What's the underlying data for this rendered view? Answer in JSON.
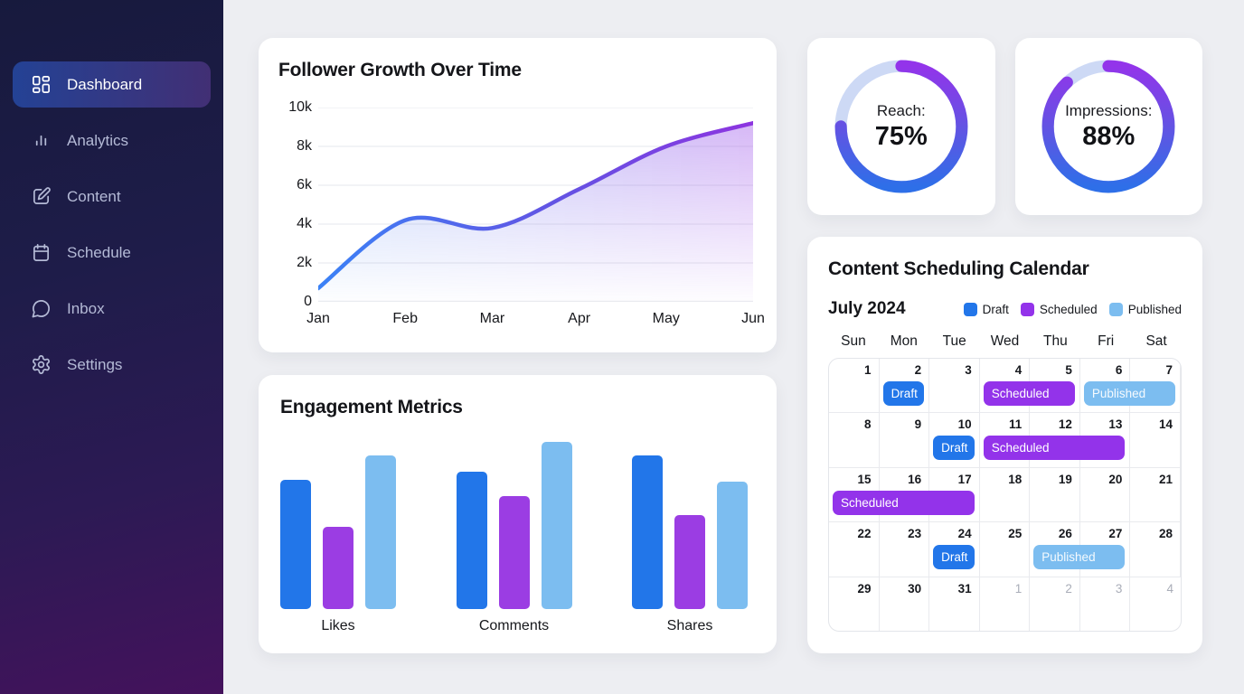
{
  "sidebar": {
    "items": [
      {
        "label": "Dashboard",
        "icon": "dashboard",
        "active": true
      },
      {
        "label": "Analytics",
        "icon": "analytics",
        "active": false
      },
      {
        "label": "Content",
        "icon": "content",
        "active": false
      },
      {
        "label": "Schedule",
        "icon": "schedule",
        "active": false
      },
      {
        "label": "Inbox",
        "icon": "inbox",
        "active": false
      },
      {
        "label": "Settings",
        "icon": "settings",
        "active": false
      }
    ]
  },
  "follower": {
    "title": "Follower Growth Over Time",
    "chart_data": {
      "type": "area",
      "x": [
        "Jan",
        "Feb",
        "Mar",
        "Apr",
        "May",
        "Jun"
      ],
      "values": [
        700,
        4200,
        3800,
        5800,
        8000,
        9200
      ],
      "ylim": [
        0,
        10000
      ],
      "y_tick_labels": [
        "10k",
        "8k",
        "6k",
        "4k",
        "2k",
        "0"
      ],
      "grid": "horizontal",
      "line_gradient": [
        "#3b82f6",
        "#6353e3",
        "#8d34e0"
      ],
      "fill_gradient": [
        "rgba(96,150,241,0.42)",
        "rgba(164,94,235,0.48)"
      ]
    }
  },
  "engagement": {
    "title": "Engagement Metrics",
    "chart_data": {
      "type": "bar",
      "categories": [
        "Likes",
        "Comments",
        "Shares"
      ],
      "series": [
        {
          "name": "blue",
          "color": "#2276e9",
          "values": [
            74,
            79,
            88
          ]
        },
        {
          "name": "purple",
          "color": "#9b3de3",
          "values": [
            47,
            65,
            54
          ]
        },
        {
          "name": "light-blue",
          "color": "#7cbdf0",
          "values": [
            88,
            96,
            73
          ]
        }
      ],
      "unit": "percent-of-chart-height"
    }
  },
  "gauges": [
    {
      "label": "Reach:",
      "value": "75%",
      "percent": 75
    },
    {
      "label": "Impressions:",
      "value": "88%",
      "percent": 88
    }
  ],
  "gauge_colors": {
    "track": "#cdd9f5",
    "gradient": [
      "#2e6fe8",
      "#6353e3",
      "#9334ea"
    ]
  },
  "calendar": {
    "title": "Content Scheduling Calendar",
    "month_label": "July 2024",
    "legend": [
      {
        "label": "Draft",
        "color": "#2276e9"
      },
      {
        "label": "Scheduled",
        "color": "#9333ea"
      },
      {
        "label": "Published",
        "color": "#7cbdf0"
      }
    ],
    "weekdays": [
      "Sun",
      "Mon",
      "Tue",
      "Wed",
      "Thu",
      "Fri",
      "Sat"
    ],
    "event_colors": {
      "draft": "#2276e9",
      "scheduled": "#9333ea",
      "published": "#7cbdf0"
    },
    "weeks": [
      {
        "days": [
          {
            "n": "1"
          },
          {
            "n": "2"
          },
          {
            "n": "3"
          },
          {
            "n": "4"
          },
          {
            "n": "5"
          },
          {
            "n": "6"
          },
          {
            "n": "7"
          }
        ],
        "events": [
          {
            "col": 2,
            "span": 1,
            "type": "draft",
            "label": "Draft"
          },
          {
            "col": 4,
            "span": 2,
            "type": "scheduled",
            "label": "Scheduled"
          },
          {
            "col": 6,
            "span": 2,
            "type": "published",
            "label": "Published"
          }
        ]
      },
      {
        "days": [
          {
            "n": "8"
          },
          {
            "n": "9"
          },
          {
            "n": "10"
          },
          {
            "n": "11"
          },
          {
            "n": "12"
          },
          {
            "n": "13"
          },
          {
            "n": "14"
          }
        ],
        "events": [
          {
            "col": 3,
            "span": 1,
            "type": "draft",
            "label": "Draft"
          },
          {
            "col": 4,
            "span": 3,
            "type": "scheduled",
            "label": "Scheduled"
          }
        ]
      },
      {
        "days": [
          {
            "n": "15"
          },
          {
            "n": "16"
          },
          {
            "n": "17"
          },
          {
            "n": "18"
          },
          {
            "n": "19"
          },
          {
            "n": "20"
          },
          {
            "n": "21"
          }
        ],
        "events": [
          {
            "col": 1,
            "span": 3,
            "type": "scheduled",
            "label": "Scheduled"
          }
        ]
      },
      {
        "days": [
          {
            "n": "22"
          },
          {
            "n": "23"
          },
          {
            "n": "24"
          },
          {
            "n": "25"
          },
          {
            "n": "26"
          },
          {
            "n": "27"
          },
          {
            "n": "28"
          }
        ],
        "events": [
          {
            "col": 3,
            "span": 1,
            "type": "draft",
            "label": "Draft"
          },
          {
            "col": 5,
            "span": 2,
            "type": "published",
            "label": "Published"
          }
        ]
      },
      {
        "days": [
          {
            "n": "29"
          },
          {
            "n": "30"
          },
          {
            "n": "31"
          },
          {
            "n": "1",
            "muted": true
          },
          {
            "n": "2",
            "muted": true
          },
          {
            "n": "3",
            "muted": true
          },
          {
            "n": "4",
            "muted": true
          }
        ],
        "events": []
      }
    ]
  }
}
